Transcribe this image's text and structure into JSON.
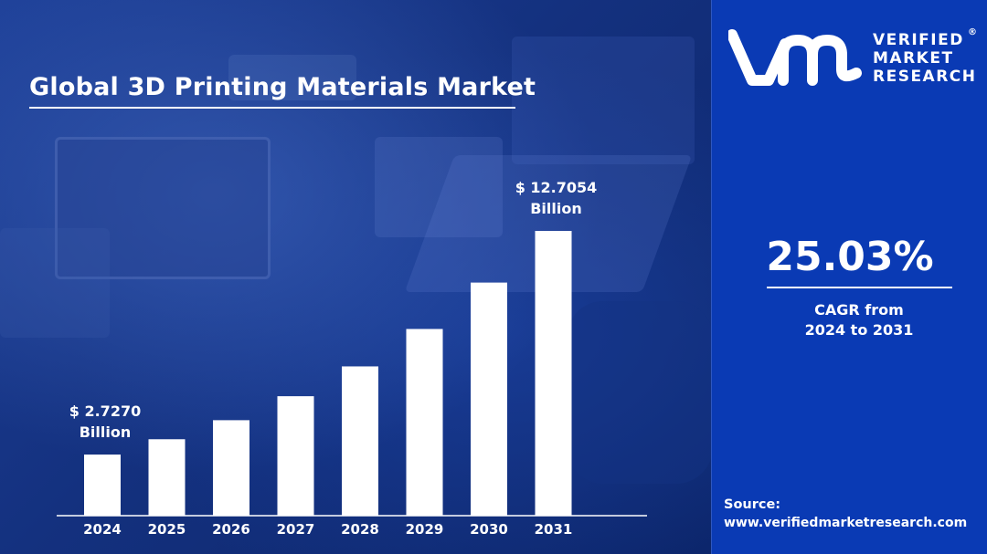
{
  "title": "Global 3D Printing Materials Market",
  "chart_data": {
    "type": "bar",
    "categories": [
      "2024",
      "2025",
      "2026",
      "2027",
      "2028",
      "2029",
      "2030",
      "2031"
    ],
    "values": [
      2.727,
      3.41,
      4.26,
      5.33,
      6.66,
      8.33,
      10.4,
      12.7054
    ],
    "ylim": [
      0,
      12.7054
    ],
    "data_labels": [
      {
        "index": 0,
        "line1": "$ 2.7270",
        "line2": "Billion"
      },
      {
        "index": 7,
        "line1": "$ 12.7054",
        "line2": "Billion"
      }
    ],
    "bar_color": "#ffffff",
    "grid": false
  },
  "cagr": {
    "value": "25.03%",
    "label_line1": "CAGR from",
    "label_line2": "2024 to 2031"
  },
  "brand": {
    "line1": "VERIFIED",
    "line2": "MARKET",
    "line3": "RESEARCH",
    "registered": "®"
  },
  "source": {
    "label": "Source:",
    "url": "www.verifiedmarketresearch.com"
  },
  "colors": {
    "panel_blue": "#0a3ab4",
    "background_blue": "#14317f",
    "bar": "#ffffff"
  }
}
